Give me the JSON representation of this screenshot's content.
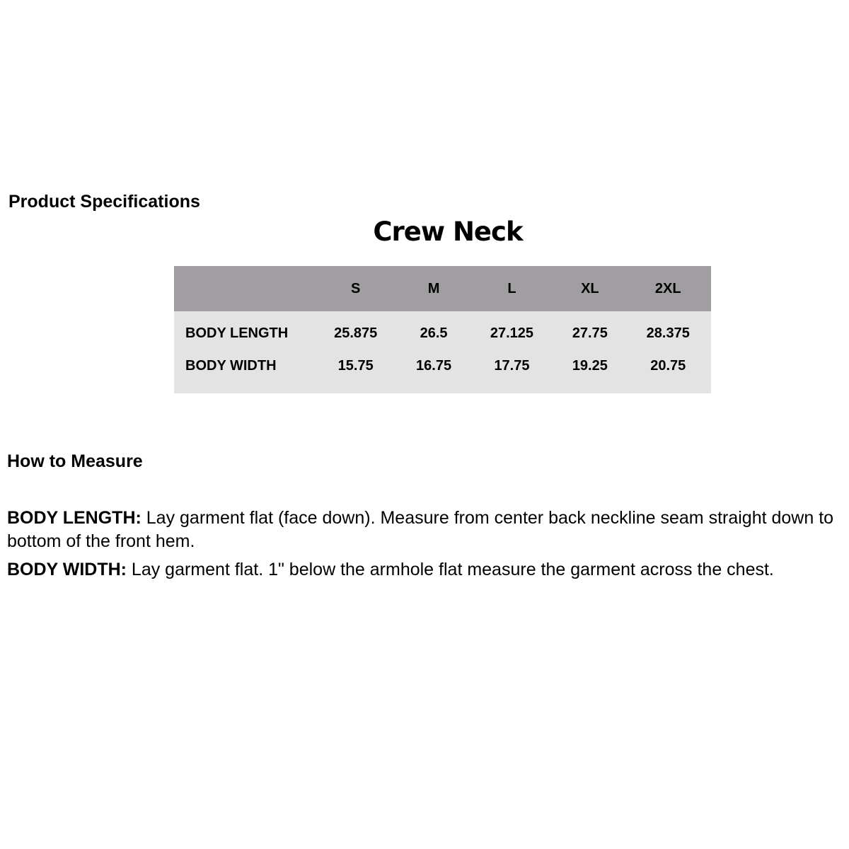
{
  "spec_title": "Product Specifications",
  "chart_title": "Crew Neck",
  "table": {
    "headers": [
      "",
      "S",
      "M",
      "L",
      "XL",
      "2XL"
    ],
    "rows": [
      {
        "label": "BODY LENGTH",
        "values": [
          "25.875",
          "26.5",
          "27.125",
          "27.75",
          "28.375"
        ]
      },
      {
        "label": "BODY WIDTH",
        "values": [
          "15.75",
          "16.75",
          "17.75",
          "19.25",
          "20.75"
        ]
      }
    ]
  },
  "measure_title": "How to Measure",
  "instructions": [
    {
      "term": "BODY LENGTH:",
      "text": " Lay garment flat (face down). Measure from center back neckline seam straight down to bottom of the front hem."
    },
    {
      "term": "BODY WIDTH:",
      "text": " Lay garment flat. 1\" below the armhole flat measure the garment across the chest."
    }
  ],
  "colors": {
    "header_bg": "#a09ea1",
    "body_bg": "#e3e3e3"
  }
}
